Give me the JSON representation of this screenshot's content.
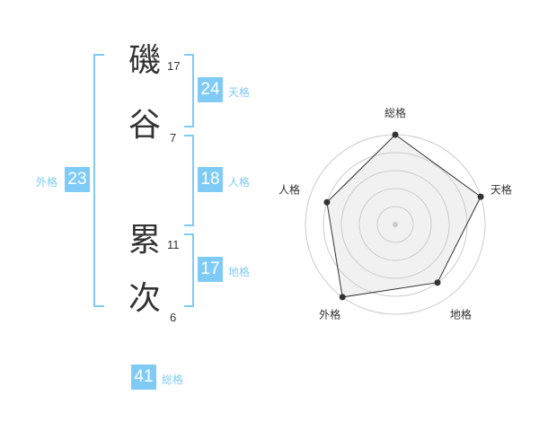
{
  "name": [
    {
      "char": "磯",
      "strokes": "17"
    },
    {
      "char": "谷",
      "strokes": "7"
    },
    {
      "char": "累",
      "strokes": "11"
    },
    {
      "char": "次",
      "strokes": "6"
    }
  ],
  "fortunes": {
    "tenkaku": {
      "label": "天格",
      "value": "24"
    },
    "jinkaku": {
      "label": "人格",
      "value": "18"
    },
    "chikaku": {
      "label": "地格",
      "value": "17"
    },
    "gaikaku": {
      "label": "外格",
      "value": "23"
    },
    "soukaku": {
      "label": "総格",
      "value": "41"
    }
  },
  "accent_color": "#7fcbf5",
  "chart_data": {
    "type": "radar",
    "axes": [
      "総格",
      "天格",
      "地格",
      "外格",
      "人格"
    ],
    "values": [
      5,
      5,
      4,
      5,
      4
    ],
    "range": [
      0,
      5
    ],
    "rings": 5
  }
}
